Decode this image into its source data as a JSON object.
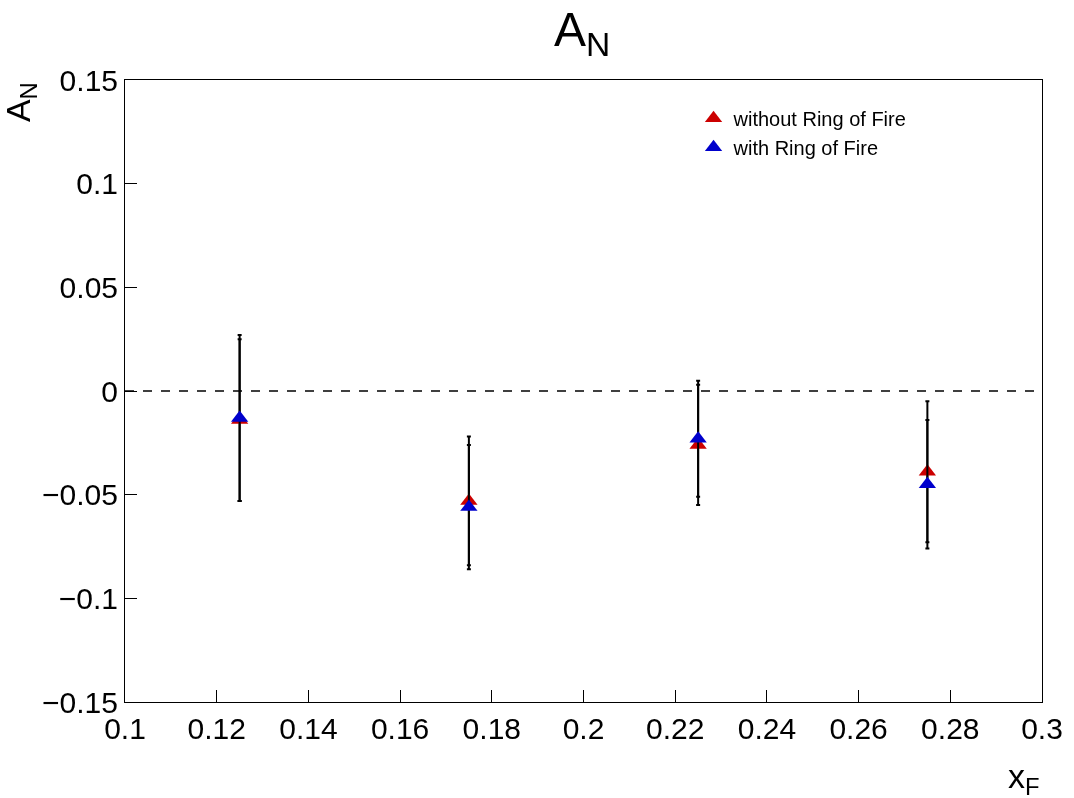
{
  "chart_data": {
    "type": "scatter",
    "title": "A$_{N}$",
    "xlabel": "x$_{F}$",
    "ylabel": "A$_{N}$",
    "x": [
      0.125,
      0.175,
      0.225,
      0.275
    ],
    "series": [
      {
        "name": "without Ring of Fire",
        "color": "#cc0000",
        "values": [
          -0.014,
          -0.053,
          -0.026,
          -0.039
        ],
        "errors": [
          0.039,
          0.031,
          0.029,
          0.034
        ]
      },
      {
        "name": "with Ring of Fire",
        "color": "#0000cc",
        "values": [
          -0.013,
          -0.056,
          -0.023,
          -0.045
        ],
        "errors": [
          0.04,
          0.03,
          0.028,
          0.031
        ]
      }
    ],
    "xlim": [
      0.1,
      0.3
    ],
    "xticks": [
      0.1,
      0.12,
      0.14,
      0.16,
      0.18,
      0.2,
      0.22,
      0.24,
      0.26,
      0.28,
      0.3
    ],
    "ylim": [
      -0.15,
      0.15
    ],
    "yticks": [
      {
        "value": -0.15,
        "label": "−0.15"
      },
      {
        "value": -0.1,
        "label": "−0.1"
      },
      {
        "value": -0.05,
        "label": "−0.05"
      },
      0,
      0.05,
      0.1,
      0.15
    ],
    "ref_lines": [
      {
        "axis": "y",
        "value": 0,
        "color": "#000000",
        "line_style": "dashed"
      }
    ],
    "legend": "top right",
    "marker": "triangle"
  }
}
